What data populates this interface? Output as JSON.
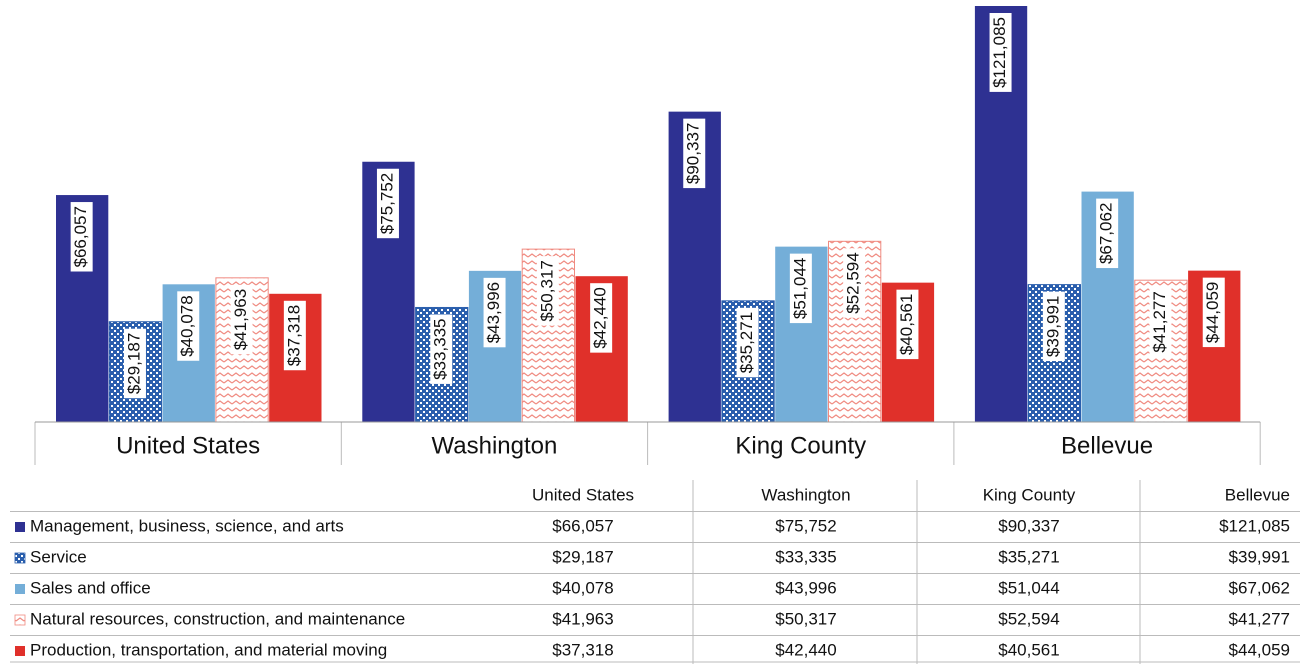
{
  "chart_data": {
    "type": "bar",
    "categories": [
      "United States",
      "Washington",
      "King County",
      "Bellevue"
    ],
    "series": [
      {
        "name": "Management, business, science, and arts",
        "color": "#2e3192",
        "values": [
          66057,
          75752,
          90337,
          121085
        ],
        "value_labels": [
          "$66,057",
          "$75,752",
          "$90,337",
          "$121,085"
        ]
      },
      {
        "name": "Service",
        "color": "#2b5fad",
        "pattern": "checker",
        "values": [
          29187,
          33335,
          35271,
          39991
        ],
        "value_labels": [
          "$29,187",
          "$33,335",
          "$35,271",
          "$39,991"
        ]
      },
      {
        "name": "Sales and office",
        "color": "#74aed8",
        "values": [
          40078,
          43996,
          51044,
          67062
        ],
        "value_labels": [
          "$40,078",
          "$43,996",
          "$51,044",
          "$67,062"
        ]
      },
      {
        "name": "Natural resources, construction, and maintenance",
        "color": "#f08a80",
        "pattern": "zigzag",
        "values": [
          41963,
          50317,
          52594,
          41277
        ],
        "value_labels": [
          "$41,963",
          "$50,317",
          "$52,594",
          "$41,277"
        ]
      },
      {
        "name": "Production, transportation, and material moving",
        "color": "#e0302a",
        "values": [
          37318,
          42440,
          40561,
          44059
        ],
        "value_labels": [
          "$37,318",
          "$42,440",
          "$40,561",
          "$44,059"
        ]
      }
    ]
  }
}
